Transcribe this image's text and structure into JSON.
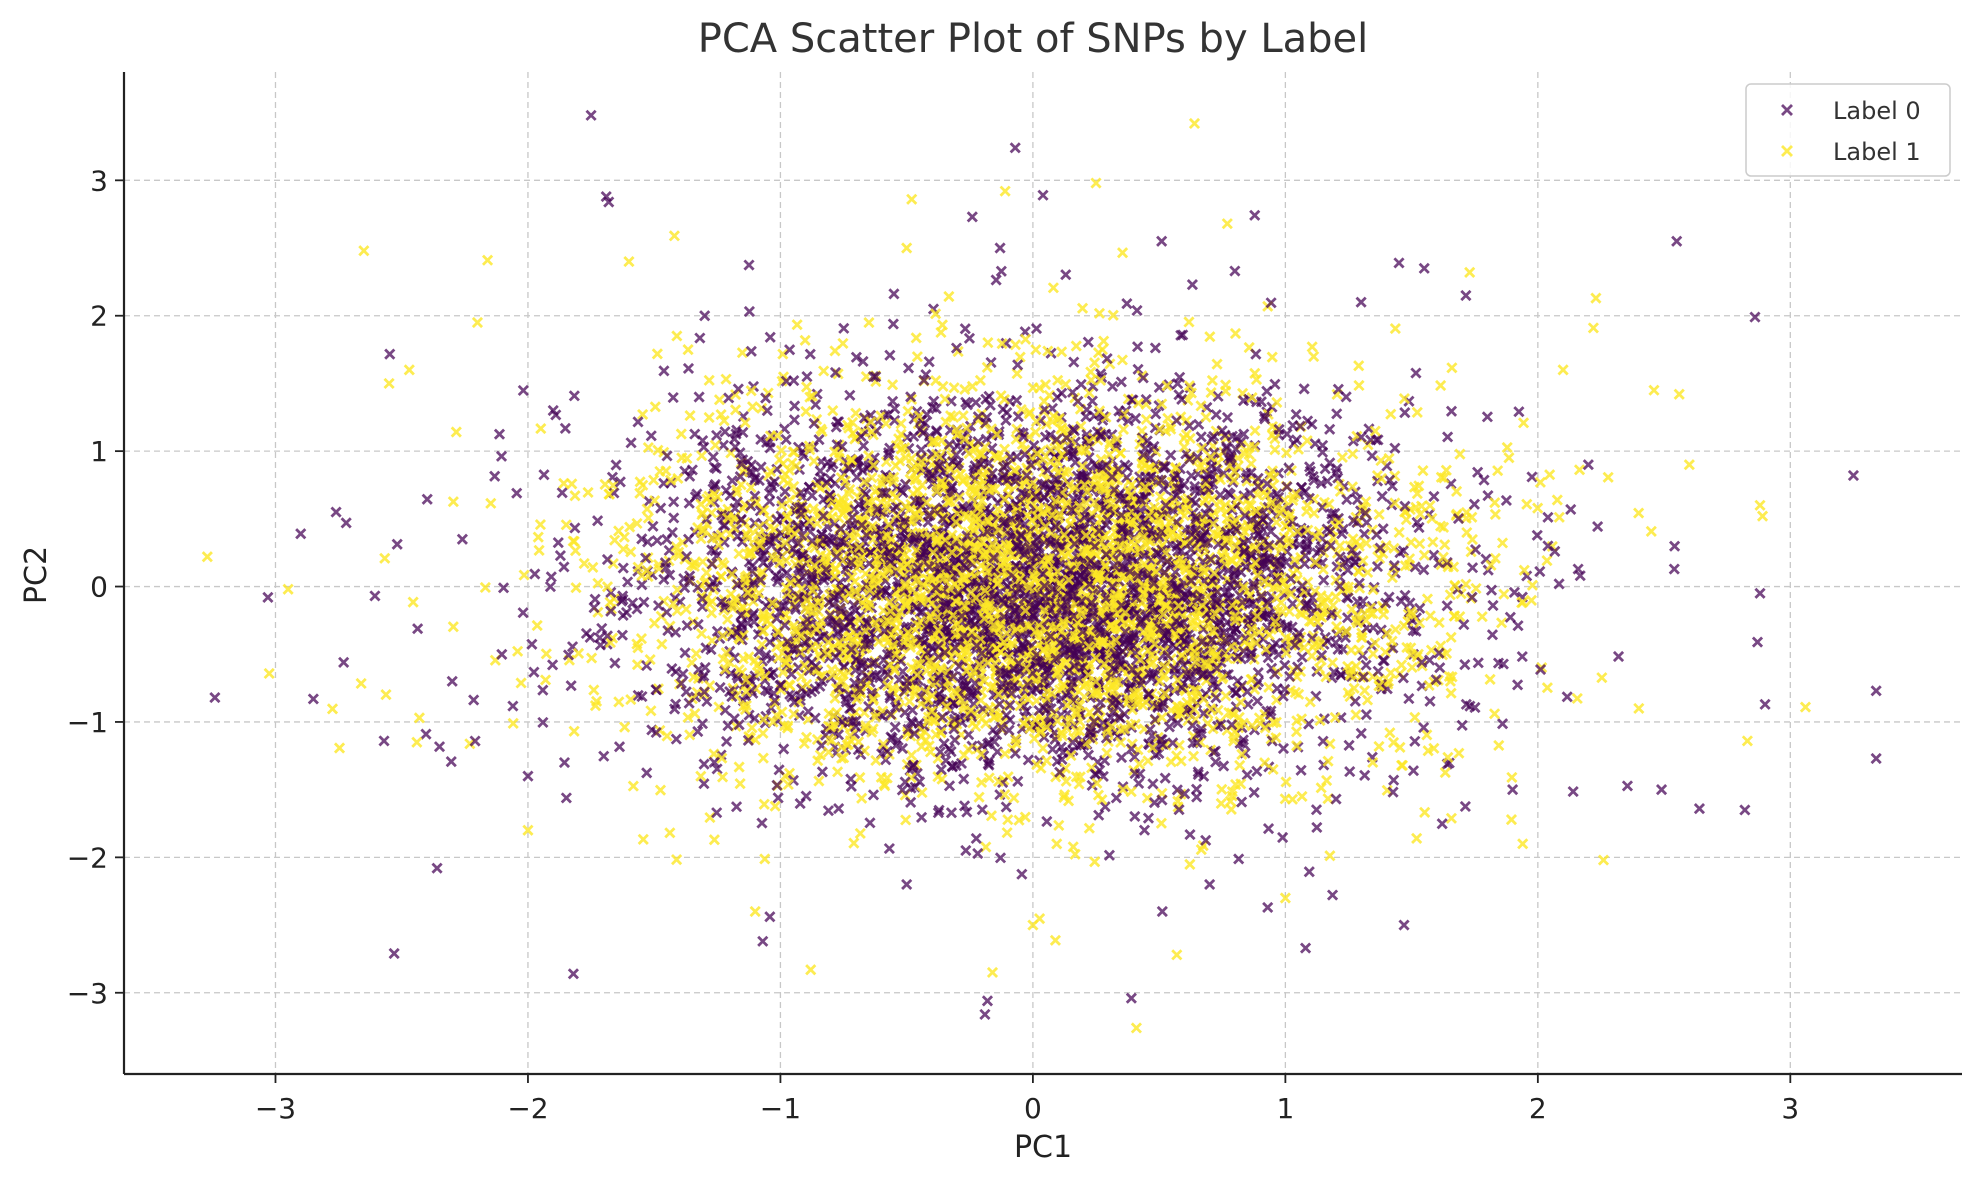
{
  "chart_data": {
    "type": "scatter",
    "title": "PCA Scatter Plot of SNPs by Label",
    "xlabel": "PC1",
    "ylabel": "PC2",
    "xlim": [
      -3.6,
      3.68
    ],
    "ylim": [
      -3.6,
      3.8
    ],
    "xticks": [
      -3,
      -2,
      -1,
      0,
      1,
      2,
      3
    ],
    "yticks": [
      -3,
      -2,
      -1,
      0,
      1,
      2,
      3
    ],
    "xtick_labels": [
      "−3",
      "−2",
      "−1",
      "0",
      "1",
      "2",
      "3"
    ],
    "ytick_labels": [
      "−3",
      "−2",
      "−1",
      "0",
      "1",
      "2",
      "3"
    ],
    "grid": true,
    "legend_position": "top-right",
    "marker": "x",
    "series": [
      {
        "name": "Label 0",
        "color": "#440154",
        "points": [
          [
            -1.75,
            3.48
          ],
          [
            -0.07,
            3.24
          ],
          [
            -1.69,
            2.88
          ],
          [
            -1.68,
            2.84
          ],
          [
            0.04,
            2.89
          ],
          [
            2.55,
            2.55
          ],
          [
            2.86,
            1.99
          ],
          [
            3.25,
            0.82
          ],
          [
            -3.24,
            -0.82
          ],
          [
            -3.03,
            -0.08
          ],
          [
            -2.9,
            0.39
          ],
          [
            -2.85,
            -0.83
          ],
          [
            -2.76,
            0.55
          ],
          [
            -2.72,
            0.47
          ],
          [
            -2.57,
            -1.14
          ],
          [
            -2.73,
            -0.56
          ],
          [
            -2.53,
            -2.71
          ],
          [
            -2.36,
            -2.08
          ],
          [
            -1.82,
            -2.86
          ],
          [
            -0.18,
            -3.06
          ],
          [
            -0.19,
            -3.16
          ],
          [
            0.39,
            -3.04
          ],
          [
            2.87,
            -0.41
          ],
          [
            2.9,
            -0.87
          ],
          [
            3.34,
            -0.77
          ],
          [
            3.34,
            -1.27
          ],
          [
            2.82,
            -1.65
          ],
          [
            2.88,
            -0.05
          ],
          [
            -0.24,
            2.73
          ],
          [
            0.51,
            2.55
          ],
          [
            0.8,
            2.33
          ],
          [
            1.45,
            2.39
          ],
          [
            1.55,
            2.35
          ],
          [
            -0.13,
            2.5
          ],
          [
            2.49,
            -1.5
          ],
          [
            2.64,
            -1.64
          ],
          [
            1.47,
            -2.5
          ],
          [
            -1.07,
            -2.62
          ],
          [
            0.93,
            -2.37
          ],
          [
            1.08,
            -2.67
          ],
          [
            2.04,
            0.3
          ],
          [
            -2.3,
            -0.7
          ],
          [
            -1.9,
            1.3
          ],
          [
            2.2,
            0.9
          ],
          [
            -0.5,
            -2.2
          ],
          [
            0.7,
            -2.2
          ],
          [
            1.9,
            -1.5
          ],
          [
            -2.0,
            -1.4
          ],
          [
            1.3,
            2.1
          ],
          [
            -1.3,
            2.0
          ]
        ]
      },
      {
        "name": "Label 1",
        "color": "#fde725",
        "points": [
          [
            0.64,
            3.42
          ],
          [
            -3.27,
            0.22
          ],
          [
            -2.95,
            -0.02
          ],
          [
            -2.65,
            2.48
          ],
          [
            -2.16,
            2.41
          ],
          [
            -1.42,
            2.59
          ],
          [
            -0.11,
            2.92
          ],
          [
            0.77,
            2.68
          ],
          [
            -0.48,
            2.86
          ],
          [
            0.41,
            -3.26
          ],
          [
            2.23,
            2.13
          ],
          [
            2.22,
            1.91
          ],
          [
            2.46,
            1.45
          ],
          [
            2.56,
            1.42
          ],
          [
            3.06,
            -0.89
          ],
          [
            2.88,
            0.6
          ],
          [
            2.83,
            -1.14
          ],
          [
            2.89,
            0.52
          ],
          [
            2.26,
            -2.02
          ],
          [
            -2.44,
            -1.15
          ],
          [
            -2.43,
            -0.97
          ],
          [
            -2.55,
            1.5
          ],
          [
            -2.47,
            1.6
          ],
          [
            -0.88,
            -2.83
          ],
          [
            -0.16,
            -2.85
          ],
          [
            0.57,
            -2.72
          ],
          [
            1.52,
            -1.86
          ],
          [
            1.94,
            -1.9
          ],
          [
            1.73,
            2.32
          ],
          [
            -0.5,
            2.5
          ],
          [
            0.25,
            2.98
          ],
          [
            -2.2,
            1.95
          ],
          [
            -1.6,
            2.4
          ],
          [
            2.1,
            1.6
          ],
          [
            -2.0,
            -1.8
          ],
          [
            0.0,
            -2.5
          ],
          [
            1.0,
            -2.3
          ],
          [
            -1.1,
            -2.4
          ],
          [
            2.4,
            -0.9
          ],
          [
            2.6,
            0.9
          ]
        ]
      }
    ],
    "dense_cloud": {
      "count_per_series": 3400,
      "center": [
        0.0,
        0.0
      ],
      "std": [
        0.78,
        0.72
      ]
    }
  }
}
